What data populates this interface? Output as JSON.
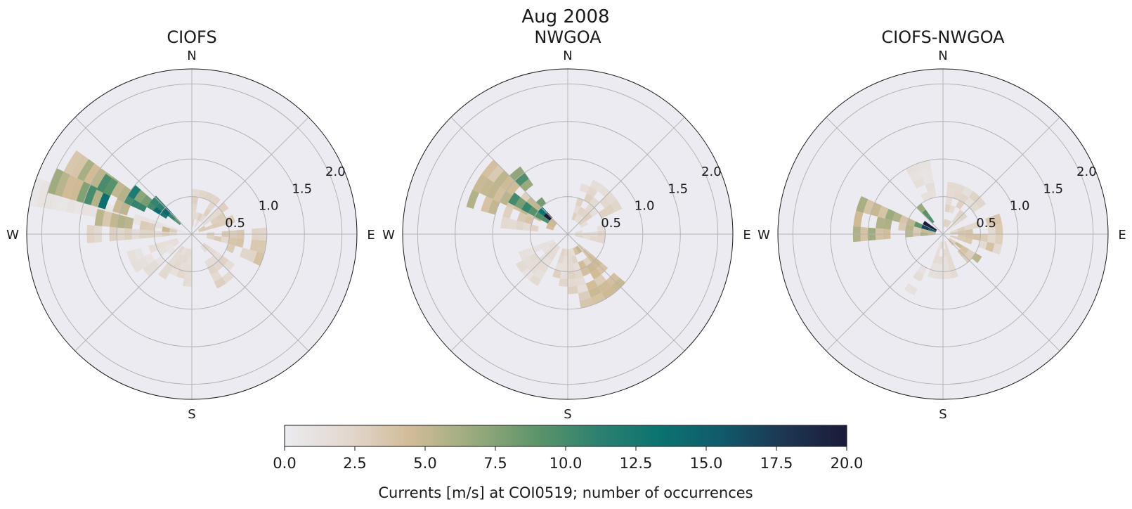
{
  "figure_title": "Aug 2008",
  "colorbar": {
    "label": "Currents [m/s] at COI0519; number of occurrences",
    "ticks": [
      "0.0",
      "2.5",
      "5.0",
      "7.5",
      "10.0",
      "12.5",
      "15.0",
      "17.5",
      "20.0"
    ],
    "range": [
      0,
      20
    ],
    "colors": [
      "#ecebf0",
      "#e2d8cf",
      "#d2bc98",
      "#9bab7e",
      "#5f956a",
      "#2e8170",
      "#0b7370",
      "#115a6c",
      "#1d3652",
      "#1b1a39"
    ]
  },
  "chart_data": [
    {
      "type": "polar-heatmap",
      "title": "CIOFS",
      "directions": [
        "N",
        "E",
        "S",
        "W"
      ],
      "radial_ticks": [
        "0.5",
        "1.0",
        "1.5",
        "2.0"
      ],
      "rlim": [
        0,
        2.2
      ],
      "bin_width_deg": 10,
      "bin_width_speed": 0.1,
      "wedges": [
        {
          "dir": 285,
          "r0": 0.0,
          "r1": 2.2,
          "val": 1.0,
          "spread": 10
        },
        {
          "dir": 295,
          "r0": 0.9,
          "r1": 2.0,
          "val": 6.0,
          "spread": 18
        },
        {
          "dir": 290,
          "r0": 1.2,
          "r1": 1.6,
          "val": 12.0,
          "spread": 8
        },
        {
          "dir": 300,
          "r0": 0.7,
          "r1": 1.4,
          "val": 10.0,
          "spread": 10
        },
        {
          "dir": 305,
          "r0": 0.4,
          "r1": 1.0,
          "val": 13.0,
          "spread": 8
        },
        {
          "dir": 310,
          "r0": 0.2,
          "r1": 0.7,
          "val": 16.0,
          "spread": 6
        },
        {
          "dir": 280,
          "r0": 0.2,
          "r1": 1.3,
          "val": 5.0,
          "spread": 10
        },
        {
          "dir": 270,
          "r0": 0.2,
          "r1": 1.4,
          "val": 2.5,
          "spread": 10
        },
        {
          "dir": 100,
          "r0": 0.2,
          "r1": 1.0,
          "val": 3.5,
          "spread": 30
        },
        {
          "dir": 140,
          "r0": 0.2,
          "r1": 0.8,
          "val": 2.5,
          "spread": 30
        },
        {
          "dir": 200,
          "r0": 0.2,
          "r1": 0.7,
          "val": 2.0,
          "spread": 40
        },
        {
          "dir": 20,
          "r0": 0.1,
          "r1": 0.6,
          "val": 2.5,
          "spread": 40
        },
        {
          "dir": 60,
          "r0": 0.1,
          "r1": 0.6,
          "val": 3.0,
          "spread": 30
        },
        {
          "dir": 240,
          "r0": 0.2,
          "r1": 0.9,
          "val": 1.5,
          "spread": 30
        }
      ]
    },
    {
      "type": "polar-heatmap",
      "title": "NWGOA",
      "directions": [
        "N",
        "E",
        "S",
        "W"
      ],
      "radial_ticks": [
        "0.5",
        "1.0",
        "1.5",
        "2.0"
      ],
      "rlim": [
        0,
        2.2
      ],
      "bin_width_deg": 10,
      "bin_width_speed": 0.1,
      "wedges": [
        {
          "dir": 300,
          "r0": 0.2,
          "r1": 1.4,
          "val": 5.0,
          "spread": 30
        },
        {
          "dir": 305,
          "r0": 0.3,
          "r1": 0.9,
          "val": 11.0,
          "spread": 14
        },
        {
          "dir": 310,
          "r0": 0.3,
          "r1": 0.5,
          "val": 18.0,
          "spread": 6
        },
        {
          "dir": 320,
          "r0": 0.5,
          "r1": 1.1,
          "val": 9.0,
          "spread": 10
        },
        {
          "dir": 280,
          "r0": 0.2,
          "r1": 0.9,
          "val": 3.0,
          "spread": 10
        },
        {
          "dir": 150,
          "r0": 0.2,
          "r1": 1.0,
          "val": 4.5,
          "spread": 40
        },
        {
          "dir": 180,
          "r0": 0.2,
          "r1": 0.8,
          "val": 2.5,
          "spread": 40
        },
        {
          "dir": 40,
          "r0": 0.2,
          "r1": 0.8,
          "val": 2.5,
          "spread": 50
        },
        {
          "dir": 90,
          "r0": 0.1,
          "r1": 0.5,
          "val": 2.5,
          "spread": 30
        },
        {
          "dir": 230,
          "r0": 0.2,
          "r1": 0.8,
          "val": 1.8,
          "spread": 40
        }
      ]
    },
    {
      "type": "polar-heatmap",
      "title": "CIOFS-NWGOA",
      "directions": [
        "N",
        "E",
        "S",
        "W"
      ],
      "radial_ticks": [
        "0.5",
        "1.0",
        "1.5",
        "2.0"
      ],
      "rlim": [
        0,
        2.2
      ],
      "bin_width_deg": 10,
      "bin_width_speed": 0.1,
      "wedges": [
        {
          "dir": 280,
          "r0": 0.1,
          "r1": 1.2,
          "val": 6.0,
          "spread": 30
        },
        {
          "dir": 290,
          "r0": 0.1,
          "r1": 0.4,
          "val": 16.0,
          "spread": 10
        },
        {
          "dir": 300,
          "r0": 0.1,
          "r1": 0.3,
          "val": 20.0,
          "spread": 8
        },
        {
          "dir": 320,
          "r0": 0.2,
          "r1": 0.5,
          "val": 12.0,
          "spread": 10
        },
        {
          "dir": 90,
          "r0": 0.1,
          "r1": 0.8,
          "val": 3.5,
          "spread": 40
        },
        {
          "dir": 130,
          "r0": 0.1,
          "r1": 0.6,
          "val": 5.0,
          "spread": 20
        },
        {
          "dir": 30,
          "r0": 0.1,
          "r1": 0.7,
          "val": 2.5,
          "spread": 50
        },
        {
          "dir": 180,
          "r0": 0.1,
          "r1": 0.6,
          "val": 2.0,
          "spread": 40
        },
        {
          "dir": 210,
          "r0": 0.5,
          "r1": 0.9,
          "val": 1.8,
          "spread": 10
        },
        {
          "dir": 340,
          "r0": 0.5,
          "r1": 1.0,
          "val": 1.5,
          "spread": 20
        }
      ]
    }
  ]
}
